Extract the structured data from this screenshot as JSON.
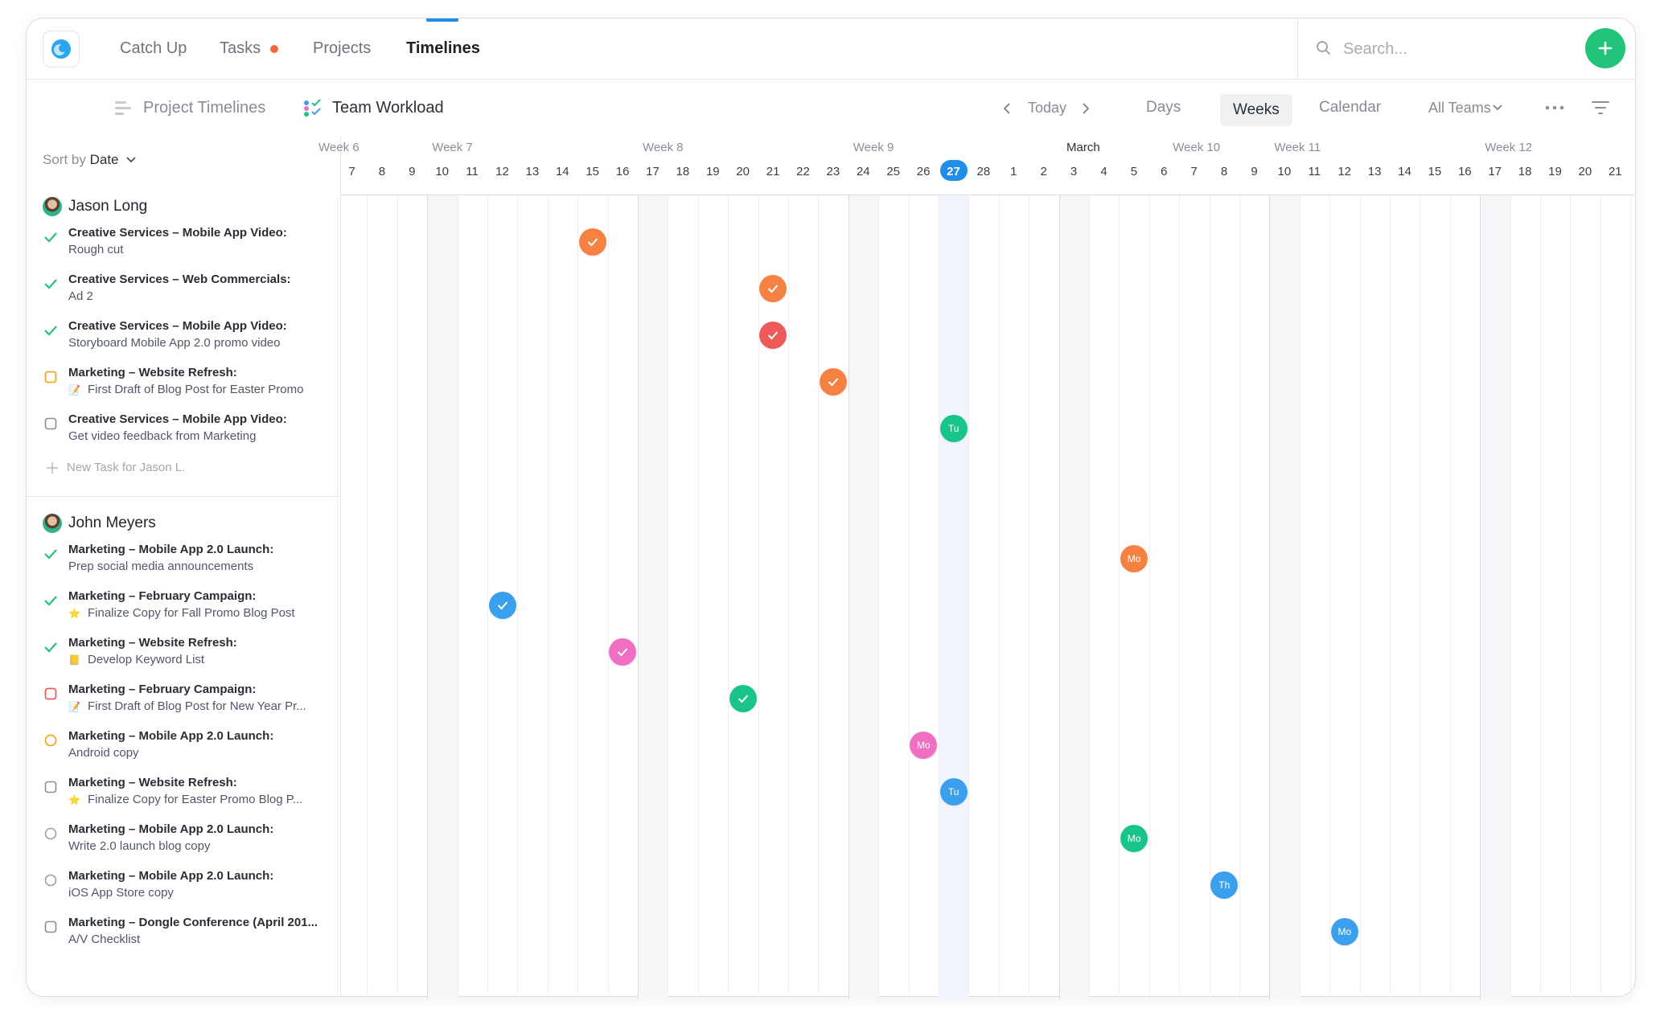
{
  "nav": {
    "tabs": [
      {
        "label": "Catch Up"
      },
      {
        "label": "Tasks"
      },
      {
        "label": "Projects"
      },
      {
        "label": "Timelines"
      }
    ],
    "active_tab": "Timelines",
    "search_placeholder": "Search...",
    "add_button_label": "+"
  },
  "toolbar": {
    "project_timelines": "Project Timelines",
    "team_workload": "Team Workload",
    "today": "Today",
    "views": {
      "days": "Days",
      "weeks": "Weeks",
      "calendar": "Calendar"
    },
    "active_view": "Weeks",
    "team_filter": "All Teams"
  },
  "sidebar": {
    "sort_prefix": "Sort by",
    "sort_value": "Date",
    "people": [
      {
        "name": "Jason Long",
        "new_task": "New Task for Jason L.",
        "tasks": [
          {
            "project": "Creative Services –  Mobile App Video:",
            "title": "Rough cut",
            "status": "done",
            "emoji": ""
          },
          {
            "project": "Creative Services –  Web Commercials:",
            "title": "Ad 2",
            "status": "done",
            "emoji": ""
          },
          {
            "project": "Creative Services –  Mobile App Video:",
            "title": "Storyboard Mobile App 2.0 promo video",
            "status": "done",
            "emoji": ""
          },
          {
            "project": "Marketing –  Website Refresh:",
            "title": "First Draft of Blog Post for Easter Promo",
            "status": "open-orange",
            "emoji": "📝"
          },
          {
            "project": "Creative Services –  Mobile App Video:",
            "title": "Get video feedback from Marketing",
            "status": "open",
            "emoji": ""
          }
        ]
      },
      {
        "name": "John Meyers",
        "tasks": [
          {
            "project": "Marketing –  Mobile App 2.0 Launch:",
            "title": "Prep social media announcements",
            "status": "done",
            "emoji": ""
          },
          {
            "project": "Marketing –  February Campaign:",
            "title": "Finalize Copy for Fall Promo Blog Post",
            "status": "done",
            "emoji": "⭐"
          },
          {
            "project": "Marketing –  Website Refresh:",
            "title": "Develop Keyword List",
            "status": "done",
            "emoji": "📒"
          },
          {
            "project": "Marketing –  February Campaign:",
            "title": "First Draft of Blog Post for New Year Pr...",
            "status": "open-red",
            "emoji": "📝"
          },
          {
            "project": "Marketing –  Mobile App 2.0 Launch:",
            "title": "Android copy",
            "status": "circle-orange",
            "emoji": ""
          },
          {
            "project": "Marketing –  Website Refresh:",
            "title": "Finalize Copy for Easter Promo Blog P...",
            "status": "open",
            "emoji": "⭐"
          },
          {
            "project": "Marketing –  Mobile App 2.0 Launch:",
            "title": "Write 2.0 launch blog copy",
            "status": "circle",
            "emoji": ""
          },
          {
            "project": "Marketing –  Mobile App 2.0 Launch:",
            "title": "iOS App Store copy",
            "status": "circle",
            "emoji": ""
          },
          {
            "project": "Marketing –  Dongle Conference (April 201...",
            "title": "A/V Checklist",
            "status": "open",
            "emoji": ""
          }
        ]
      }
    ]
  },
  "timeline": {
    "weeks": [
      "Week 6",
      "Week 7",
      "Week 8",
      "Week 9",
      "Week 10",
      "Week 11",
      "Week 12"
    ],
    "month": "March",
    "days": [
      "7",
      "8",
      "9",
      "10",
      "11",
      "12",
      "13",
      "14",
      "15",
      "16",
      "17",
      "18",
      "19",
      "20",
      "21",
      "22",
      "23",
      "24",
      "25",
      "26",
      "27",
      "28",
      "1",
      "2",
      "3",
      "4",
      "5",
      "6",
      "7",
      "8",
      "9",
      "10",
      "11",
      "12",
      "13",
      "14",
      "15",
      "16",
      "17",
      "18",
      "19",
      "20",
      "21"
    ],
    "today": "27",
    "markers": [
      {
        "row": 0,
        "day_index": 8,
        "color": "#f58242",
        "label": "",
        "check": true
      },
      {
        "row": 1,
        "day_index": 14,
        "color": "#f58242",
        "label": "",
        "check": true
      },
      {
        "row": 2,
        "day_index": 14,
        "color": "#ee5a5a",
        "label": "",
        "check": true
      },
      {
        "row": 3,
        "day_index": 16,
        "color": "#f58242",
        "label": "",
        "check": true
      },
      {
        "row": 4,
        "day_index": 20,
        "color": "#19c48a",
        "label": "Tu",
        "check": false
      },
      {
        "row": 5,
        "day_index": 26,
        "color": "#f58242",
        "label": "Mo",
        "check": false
      },
      {
        "row": 6,
        "day_index": 5,
        "color": "#3aa0ee",
        "label": "",
        "check": true
      },
      {
        "row": 7,
        "day_index": 9,
        "color": "#f06fc3",
        "label": "",
        "check": true
      },
      {
        "row": 8,
        "day_index": 13,
        "color": "#19c48a",
        "label": "",
        "check": true
      },
      {
        "row": 9,
        "day_index": 19,
        "color": "#f06fc3",
        "label": "Mo",
        "check": false
      },
      {
        "row": 10,
        "day_index": 20,
        "color": "#3aa0ee",
        "label": "Tu",
        "check": false
      },
      {
        "row": 11,
        "day_index": 26,
        "color": "#19c48a",
        "label": "Mo",
        "check": false
      },
      {
        "row": 12,
        "day_index": 29,
        "color": "#3aa0ee",
        "label": "Th",
        "check": false
      },
      {
        "row": 13,
        "day_index": 33,
        "color": "#3aa0ee",
        "label": "Mo",
        "check": false
      }
    ]
  }
}
